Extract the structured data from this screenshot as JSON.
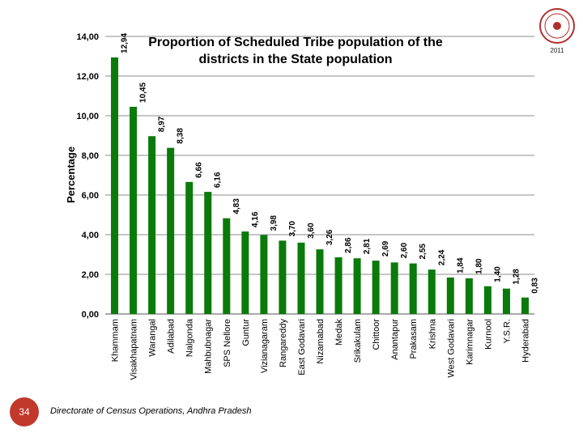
{
  "title": "Proportion of Scheduled Tribe population of the districts in the State population",
  "footer": "Directorate of Census Operations, Andhra Pradesh",
  "page_number": "34",
  "logo": {
    "icon": "census-emblem-icon",
    "year": "2011"
  },
  "colors": {
    "bar": "#0a7a0a",
    "grid": "#8c8c8c"
  },
  "chart_data": {
    "type": "bar",
    "title": "Proportion of Scheduled Tribe population of the districts in the State population",
    "xlabel": "",
    "ylabel": "Percentage",
    "ylim": [
      0,
      14
    ],
    "yticks": [
      "0,00",
      "2,00",
      "4,00",
      "6,00",
      "8,00",
      "10,00",
      "12,00",
      "14,00"
    ],
    "grid": true,
    "categories": [
      "Khammam",
      "Visakhapatnam",
      "Warangal",
      "Adilabad",
      "Nalgonda",
      "Mahbubnagar",
      "SPS Nellore",
      "Guntur",
      "Vizianagaram",
      "Rangareddy",
      "East Godavari",
      "Nizamabad",
      "Medak",
      "Srikakulam",
      "Chittoor",
      "Anantapur",
      "Prakasam",
      "Krishna",
      "West Godavari",
      "Karimnagar",
      "Kurnool",
      "Y.S.R.",
      "Hyderabad"
    ],
    "values": [
      12.94,
      10.45,
      8.97,
      8.38,
      6.66,
      6.16,
      4.83,
      4.16,
      3.98,
      3.7,
      3.6,
      3.26,
      2.86,
      2.81,
      2.69,
      2.6,
      2.55,
      2.24,
      1.84,
      1.8,
      1.4,
      1.28,
      0.83
    ],
    "value_labels": [
      "12,94",
      "10,45",
      "8,97",
      "8,38",
      "6,66",
      "6,16",
      "4,83",
      "4,16",
      "3,98",
      "3,70",
      "3,60",
      "3,26",
      "2,86",
      "2,81",
      "2,69",
      "2,60",
      "2,55",
      "2,24",
      "1,84",
      "1,80",
      "1,40",
      "1,28",
      "0,83"
    ]
  }
}
